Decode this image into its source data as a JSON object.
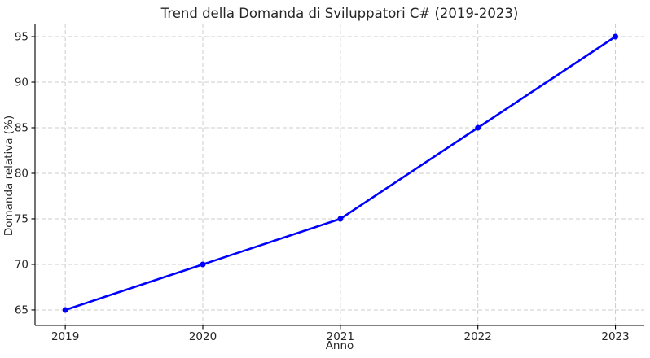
{
  "figure": {
    "title": "Trend della Domanda di Sviluppatori C# (2019-2023)",
    "xlabel": "Anno",
    "ylabel": "Domanda relativa (%)"
  },
  "chart_data": {
    "type": "line",
    "title": "Trend della Domanda di Sviluppatori C# (2019-2023)",
    "xlabel": "Anno",
    "ylabel": "Domanda relativa (%)",
    "x": [
      2019,
      2020,
      2021,
      2022,
      2023
    ],
    "values": [
      65,
      70,
      75,
      85,
      95
    ],
    "xticks": [
      "2019",
      "2020",
      "2021",
      "2022",
      "2023"
    ],
    "xtick_positions": [
      2019,
      2020,
      2021,
      2022,
      2023
    ],
    "yticks": [
      "65",
      "70",
      "75",
      "80",
      "85",
      "90",
      "95"
    ],
    "ytick_positions": [
      65,
      70,
      75,
      80,
      85,
      90,
      95
    ],
    "xlim": [
      2018.78,
      2023.21
    ],
    "ylim": [
      63.3,
      96.43
    ],
    "grid": true,
    "grid_linestyle": "dashed",
    "legend": false,
    "marker": "circle",
    "colors": {
      "line": "#0000ff",
      "marker": "#0000ff",
      "grid": "#cccccc",
      "spine": "#000000",
      "tick": "#000000",
      "text": "#262626",
      "background": "#ffffff"
    }
  }
}
